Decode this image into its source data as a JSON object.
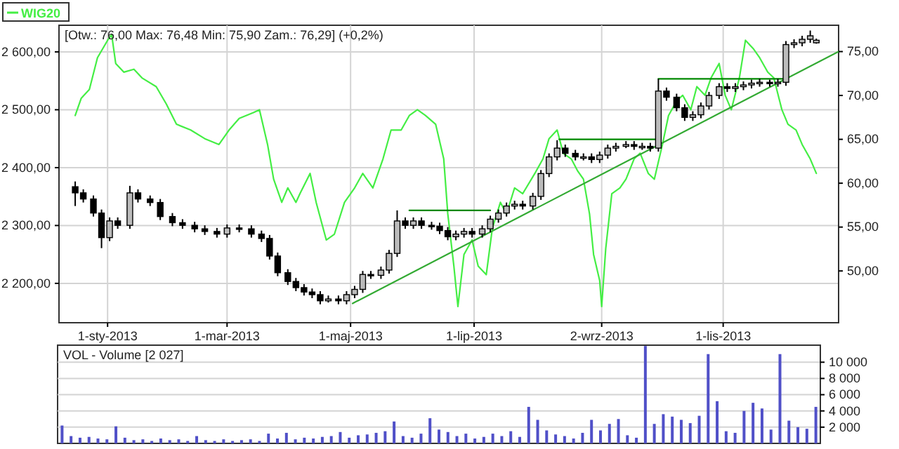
{
  "chart_data": [
    {
      "type": "candlestick",
      "annotations": [
        "[Otw.: 76,00 Max: 76,48 Min: 75,90 Zam.: 76,29] (+0,2%)"
      ],
      "legend": "top left",
      "grid": true,
      "xlim": [
        "2012-12-08",
        "2013-12-28"
      ],
      "xticks": [
        {
          "value": "2013-01-01",
          "label": "1-sty-2013"
        },
        {
          "value": "2013-03-01",
          "label": "1-mar-2013"
        },
        {
          "value": "2013-05-01",
          "label": "1-maj-2013"
        },
        {
          "value": "2013-07-01",
          "label": "1-lip-2013"
        },
        {
          "value": "2013-09-02",
          "label": "2-wrz-2013"
        },
        {
          "value": "2013-11-01",
          "label": "1-lis-2013"
        }
      ],
      "ylim": [
        2132,
        2646
      ],
      "yticks": [
        {
          "value": 2200,
          "label": "2 200,00"
        },
        {
          "value": 2300,
          "label": "2 300,00"
        },
        {
          "value": 2400,
          "label": "2 400,00"
        },
        {
          "value": 2500,
          "label": "2 500,00"
        },
        {
          "value": 2600,
          "label": "2 600,00"
        }
      ],
      "y2lim": [
        44.1,
        78.0
      ],
      "y2ticks": [
        {
          "value": 50,
          "label": "50,00"
        },
        {
          "value": 55,
          "label": "55,00"
        },
        {
          "value": 60,
          "label": "60,00"
        },
        {
          "value": 65,
          "label": "65,00"
        },
        {
          "value": 70,
          "label": "70,00"
        },
        {
          "value": 75,
          "label": "75,00"
        }
      ],
      "series": [
        {
          "name": "WIG20",
          "type": "line",
          "color": "#44ee44",
          "x": [
            "2012-12-16",
            "2012-12-19",
            "2012-12-23",
            "2012-12-27",
            "2013-01-01",
            "2013-01-03",
            "2013-01-05",
            "2013-01-09",
            "2013-01-14",
            "2013-01-18",
            "2013-01-25",
            "2013-01-30",
            "2013-02-04",
            "2013-02-11",
            "2013-02-18",
            "2013-02-25",
            "2013-03-02",
            "2013-03-07",
            "2013-03-14",
            "2013-03-17",
            "2013-03-21",
            "2013-03-24",
            "2013-03-28",
            "2013-03-31",
            "2013-04-04",
            "2013-04-06",
            "2013-04-11",
            "2013-04-14",
            "2013-04-19",
            "2013-04-23",
            "2013-04-28",
            "2013-05-03",
            "2013-05-07",
            "2013-05-12",
            "2013-05-17",
            "2013-05-21",
            "2013-05-26",
            "2013-05-30",
            "2013-06-03",
            "2013-06-07",
            "2013-06-12",
            "2013-06-16",
            "2013-06-18",
            "2013-06-21",
            "2013-06-23",
            "2013-06-26",
            "2013-06-30",
            "2013-07-03",
            "2013-07-07",
            "2013-07-10",
            "2013-07-14",
            "2013-07-17",
            "2013-07-21",
            "2013-07-25",
            "2013-07-31",
            "2013-08-04",
            "2013-08-07",
            "2013-08-11",
            "2013-08-14",
            "2013-08-18",
            "2013-08-21",
            "2013-08-24",
            "2013-08-27",
            "2013-08-29",
            "2013-09-01",
            "2013-09-02",
            "2013-09-04",
            "2013-09-07",
            "2013-09-11",
            "2013-09-14",
            "2013-09-18",
            "2013-09-21",
            "2013-09-25",
            "2013-09-28",
            "2013-10-02",
            "2013-10-05",
            "2013-10-09",
            "2013-10-12",
            "2013-10-16",
            "2013-10-19",
            "2013-10-23",
            "2013-10-26",
            "2013-10-30",
            "2013-11-02",
            "2013-11-05",
            "2013-11-09",
            "2013-11-12",
            "2013-11-16",
            "2013-11-19",
            "2013-11-23",
            "2013-11-26",
            "2013-11-30",
            "2013-12-03",
            "2013-12-07",
            "2013-12-10",
            "2013-12-14",
            "2013-12-17"
          ],
          "values": [
            2490,
            2520,
            2535,
            2590,
            2620,
            2630,
            2580,
            2565,
            2570,
            2555,
            2540,
            2510,
            2475,
            2465,
            2450,
            2440,
            2465,
            2485,
            2495,
            2500,
            2440,
            2380,
            2340,
            2365,
            2340,
            2355,
            2390,
            2340,
            2275,
            2285,
            2340,
            2365,
            2390,
            2365,
            2415,
            2465,
            2465,
            2490,
            2500,
            2490,
            2475,
            2415,
            2320,
            2230,
            2160,
            2250,
            2275,
            2230,
            2215,
            2295,
            2340,
            2320,
            2365,
            2355,
            2390,
            2415,
            2450,
            2465,
            2425,
            2415,
            2395,
            2380,
            2320,
            2250,
            2205,
            2160,
            2260,
            2355,
            2365,
            2380,
            2415,
            2425,
            2390,
            2380,
            2440,
            2490,
            2515,
            2525,
            2500,
            2540,
            2525,
            2555,
            2580,
            2525,
            2500,
            2555,
            2620,
            2605,
            2590,
            2565,
            2555,
            2500,
            2475,
            2465,
            2440,
            2415,
            2390
          ]
        },
        {
          "type": "line",
          "axis": "y2",
          "color": "#008800",
          "x": [
            "2013-05-30",
            "2013-07-09"
          ],
          "values": [
            56.9,
            56.9
          ]
        },
        {
          "type": "line",
          "axis": "y2",
          "color": "#008800",
          "x": [
            "2013-08-12",
            "2013-10-01"
          ],
          "values": [
            65.0,
            65.0
          ]
        },
        {
          "type": "line",
          "axis": "y2",
          "color": "#008800",
          "x": [
            "2013-09-30",
            "2013-12-01"
          ],
          "values": [
            71.9,
            71.9
          ]
        },
        {
          "type": "line",
          "axis": "y2",
          "color": "#33aa33",
          "x": [
            "2013-05-02",
            "2013-12-28"
          ],
          "values": [
            46.3,
            75.0
          ]
        },
        {
          "axis": "y2",
          "color": "#000000",
          "x": [
            "2012-12-16",
            "2012-12-20",
            "2012-12-25",
            "2012-12-29",
            "2013-01-02",
            "2013-01-06",
            "2013-01-12",
            "2013-01-16",
            "2013-01-22",
            "2013-01-27",
            "2013-02-02",
            "2013-02-07",
            "2013-02-13",
            "2013-02-18",
            "2013-02-24",
            "2013-03-01",
            "2013-03-07",
            "2013-03-13",
            "2013-03-18",
            "2013-03-22",
            "2013-03-26",
            "2013-03-31",
            "2013-04-04",
            "2013-04-08",
            "2013-04-12",
            "2013-04-16",
            "2013-04-20",
            "2013-04-25",
            "2013-04-29",
            "2013-05-03",
            "2013-05-07",
            "2013-05-11",
            "2013-05-16",
            "2013-05-20",
            "2013-05-24",
            "2013-05-28",
            "2013-06-01",
            "2013-06-05",
            "2013-06-10",
            "2013-06-14",
            "2013-06-18",
            "2013-06-22",
            "2013-06-26",
            "2013-06-30",
            "2013-07-05",
            "2013-07-09",
            "2013-07-13",
            "2013-07-17",
            "2013-07-21",
            "2013-07-25",
            "2013-07-30",
            "2013-08-03",
            "2013-08-07",
            "2013-08-11",
            "2013-08-15",
            "2013-08-20",
            "2013-08-24",
            "2013-08-28",
            "2013-09-01",
            "2013-09-05",
            "2013-09-09",
            "2013-09-14",
            "2013-09-18",
            "2013-09-22",
            "2013-09-26",
            "2013-09-30",
            "2013-10-04",
            "2013-10-09",
            "2013-10-13",
            "2013-10-17",
            "2013-10-21",
            "2013-10-25",
            "2013-10-30",
            "2013-11-03",
            "2013-11-07",
            "2013-11-11",
            "2013-11-15",
            "2013-11-19",
            "2013-11-24",
            "2013-11-28",
            "2013-12-02",
            "2013-12-06",
            "2013-12-10",
            "2013-12-14",
            "2013-12-17"
          ],
          "ohlc": [
            [
              59.6,
              60.2,
              57.4,
              58.9
            ],
            [
              58.9,
              59.3,
              57.8,
              58.2
            ],
            [
              58.2,
              58.6,
              56.2,
              56.6
            ],
            [
              56.6,
              57.0,
              52.6,
              53.8
            ],
            [
              53.8,
              56.1,
              53.4,
              55.7
            ],
            [
              55.7,
              56.1,
              54.8,
              55.2
            ],
            [
              55.2,
              59.7,
              54.8,
              58.9
            ],
            [
              58.9,
              59.3,
              57.8,
              58.2
            ],
            [
              58.2,
              58.6,
              57.4,
              57.8
            ],
            [
              57.8,
              58.2,
              55.8,
              56.2
            ],
            [
              56.2,
              56.6,
              55.1,
              55.5
            ],
            [
              55.5,
              55.9,
              54.8,
              55.2
            ],
            [
              55.2,
              55.6,
              54.4,
              54.8
            ],
            [
              54.8,
              55.2,
              54.1,
              54.5
            ],
            [
              54.5,
              54.9,
              53.8,
              54.2
            ],
            [
              54.2,
              55.3,
              53.8,
              54.9
            ],
            [
              54.9,
              55.3,
              54.4,
              54.8
            ],
            [
              54.8,
              55.2,
              53.8,
              54.2
            ],
            [
              54.2,
              54.6,
              53.3,
              53.7
            ],
            [
              53.7,
              54.1,
              51.3,
              51.7
            ],
            [
              51.7,
              52.1,
              49.4,
              49.8
            ],
            [
              49.8,
              50.2,
              48.4,
              48.8
            ],
            [
              48.8,
              49.2,
              47.7,
              48.1
            ],
            [
              48.1,
              48.5,
              47.2,
              47.6
            ],
            [
              47.6,
              48.0,
              46.9,
              47.3
            ],
            [
              47.3,
              47.7,
              46.2,
              46.6
            ],
            [
              46.6,
              47.2,
              46.4,
              46.8
            ],
            [
              46.8,
              47.2,
              46.2,
              46.6
            ],
            [
              46.6,
              47.7,
              46.2,
              47.3
            ],
            [
              47.3,
              48.3,
              46.9,
              47.9
            ],
            [
              47.9,
              50.0,
              47.5,
              49.6
            ],
            [
              49.6,
              50.0,
              49.1,
              49.5
            ],
            [
              49.5,
              50.5,
              49.1,
              50.1
            ],
            [
              50.1,
              52.4,
              49.7,
              52.0
            ],
            [
              52.0,
              56.9,
              51.6,
              55.7
            ],
            [
              55.7,
              56.1,
              54.8,
              55.2
            ],
            [
              55.2,
              56.1,
              54.8,
              55.7
            ],
            [
              55.7,
              56.1,
              54.8,
              55.2
            ],
            [
              55.2,
              55.6,
              54.7,
              55.1
            ],
            [
              55.1,
              55.5,
              54.2,
              54.6
            ],
            [
              54.6,
              55.0,
              53.5,
              53.9
            ],
            [
              53.9,
              54.6,
              53.5,
              54.2
            ],
            [
              54.2,
              54.9,
              53.8,
              54.5
            ],
            [
              54.5,
              54.9,
              53.8,
              54.2
            ],
            [
              54.2,
              55.2,
              53.8,
              54.8
            ],
            [
              54.8,
              56.3,
              54.4,
              55.9
            ],
            [
              55.9,
              57.0,
              55.5,
              56.6
            ],
            [
              56.6,
              57.8,
              56.2,
              57.4
            ],
            [
              57.4,
              58.0,
              57.0,
              57.6
            ],
            [
              57.6,
              58.0,
              57.0,
              57.4
            ],
            [
              57.4,
              58.9,
              57.0,
              58.5
            ],
            [
              58.5,
              61.5,
              58.1,
              61.1
            ],
            [
              61.1,
              63.4,
              60.7,
              63.0
            ],
            [
              63.0,
              64.9,
              62.6,
              64.0
            ],
            [
              64.0,
              64.4,
              63.0,
              63.4
            ],
            [
              63.4,
              63.8,
              62.6,
              63.0
            ],
            [
              63.0,
              63.4,
              62.6,
              63.0
            ],
            [
              63.0,
              63.4,
              62.3,
              62.7
            ],
            [
              62.7,
              63.6,
              62.3,
              63.2
            ],
            [
              63.2,
              64.4,
              62.8,
              64.0
            ],
            [
              64.0,
              64.6,
              63.6,
              64.2
            ],
            [
              64.2,
              64.8,
              64.0,
              64.4
            ],
            [
              64.4,
              64.8,
              63.8,
              64.2
            ],
            [
              64.2,
              64.6,
              63.8,
              64.2
            ],
            [
              64.2,
              64.6,
              63.6,
              64.0
            ],
            [
              64.0,
              71.9,
              63.6,
              70.5
            ],
            [
              70.5,
              70.9,
              69.4,
              69.8
            ],
            [
              69.8,
              70.2,
              68.2,
              68.6
            ],
            [
              68.6,
              69.0,
              67.1,
              67.5
            ],
            [
              67.5,
              68.2,
              67.1,
              67.8
            ],
            [
              67.8,
              69.2,
              67.4,
              68.8
            ],
            [
              68.8,
              70.4,
              68.4,
              70.0
            ],
            [
              70.0,
              71.4,
              69.6,
              71.0
            ],
            [
              71.0,
              71.4,
              70.4,
              70.8
            ],
            [
              70.8,
              71.4,
              70.4,
              71.0
            ],
            [
              71.0,
              71.6,
              70.6,
              71.2
            ],
            [
              71.2,
              71.8,
              70.8,
              71.4
            ],
            [
              71.4,
              71.9,
              71.0,
              71.5
            ],
            [
              71.5,
              71.8,
              71.0,
              71.4
            ],
            [
              71.4,
              71.9,
              71.0,
              71.5
            ],
            [
              71.5,
              76.2,
              71.1,
              75.8
            ],
            [
              75.8,
              76.4,
              75.4,
              76.0
            ],
            [
              76.0,
              76.8,
              75.6,
              76.4
            ],
            [
              76.4,
              77.4,
              76.0,
              76.8
            ],
            [
              76.0,
              76.48,
              75.9,
              76.29
            ]
          ]
        }
      ]
    },
    {
      "type": "bar",
      "title": "VOL - Volume [2 027]",
      "grid": "y",
      "tick_labels": "y",
      "ylim": [
        0,
        12100
      ],
      "yticks": [
        {
          "value": 2000,
          "label": "2 000"
        },
        {
          "value": 4000,
          "label": "4 000"
        },
        {
          "value": 6000,
          "label": "6 000"
        },
        {
          "value": 8000,
          "label": "8 000"
        },
        {
          "value": 10000,
          "label": "10 000"
        }
      ],
      "categories": [
        null,
        null,
        null,
        null,
        null,
        null,
        null,
        null,
        null,
        null,
        null,
        null,
        null,
        null,
        null,
        null,
        null,
        null,
        null,
        null,
        null,
        null,
        null,
        null,
        null,
        null,
        null,
        null,
        null,
        null,
        null,
        null,
        null,
        null,
        null,
        null,
        null,
        null,
        null,
        null,
        null,
        null,
        null,
        null,
        null,
        null,
        null,
        null,
        null,
        null,
        null,
        null,
        null,
        null,
        null,
        null,
        null,
        null,
        null,
        null,
        null,
        null,
        null,
        null,
        null,
        null,
        null,
        null,
        null,
        null,
        null,
        null,
        null,
        null,
        null,
        null,
        null,
        null,
        null,
        null,
        null,
        null,
        null,
        null,
        null
      ],
      "series": [
        {
          "color": "#5050c8",
          "values": [
            2200,
            900,
            700,
            800,
            600,
            500,
            2100,
            700,
            400,
            500,
            300,
            600,
            400,
            500,
            300,
            900,
            400,
            300,
            500,
            300,
            400,
            500,
            300,
            1200,
            600,
            1300,
            500,
            700,
            600,
            800,
            900,
            1400,
            700,
            1000,
            1100,
            1300,
            1500,
            2700,
            900,
            700,
            1200,
            3100,
            1700,
            1400,
            900,
            1200,
            600,
            800,
            1200,
            900,
            1500,
            800,
            4500,
            2900,
            1600,
            1100,
            900,
            600,
            1300,
            2900,
            1600,
            2400,
            3000,
            1000,
            700,
            12000,
            2400,
            3600,
            3300,
            2900,
            2500,
            3400,
            11000,
            5200,
            1500,
            1300,
            4000,
            5000,
            4300,
            1700,
            11000,
            2800,
            2000,
            1800,
            4500
          ]
        }
      ]
    }
  ]
}
